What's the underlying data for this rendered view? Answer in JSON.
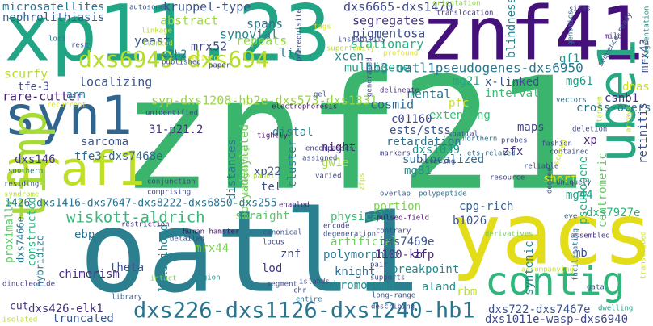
{
  "words": [
    {
      "text": "znf21",
      "color": "#3bb56e"
    },
    {
      "text": "oatl1",
      "color": "#2b7f8e"
    },
    {
      "text": "xp11.23",
      "color": "#21a585"
    },
    {
      "text": "znf41",
      "color": "#44117a"
    },
    {
      "text": "yacs",
      "color": "#e3dd19"
    },
    {
      "text": "contig",
      "color": "#2fb67b"
    },
    {
      "text": "syn1",
      "color": "#31658e"
    },
    {
      "text": "araf1",
      "color": "#bddf26"
    },
    {
      "text": "timp",
      "color": "#a6db35"
    },
    {
      "text": "ube1",
      "color": "#27a882"
    },
    {
      "text": "dxs226-dxs1126-dxs1240-hb1",
      "color": "#2b748e"
    },
    {
      "text": "dxs6949-dxs694",
      "color": "#b5de2b"
    },
    {
      "text": "hb3-oatl1pseudogenes-dxs6950",
      "color": "#2a768e"
    },
    {
      "text": "dxs6665-dxs1470",
      "color": "#3e4989"
    },
    {
      "text": "syp-dxs1208-hb2e-dxs573-dxs1331",
      "color": "#97d83f"
    },
    {
      "text": "1426-dxs1416-dxs7647-dxs8222-dxs6850-dxs255",
      "color": "#2c738e"
    },
    {
      "text": "wiskott-aldrich",
      "color": "#37b878"
    },
    {
      "text": "kruppel-type",
      "color": "#3b528b"
    },
    {
      "text": "microsatellites",
      "color": "#2c738e"
    },
    {
      "text": "nephrolithiasis",
      "color": "#35608d"
    },
    {
      "text": "abstract",
      "color": "#9fda3a"
    },
    {
      "text": "segregates",
      "color": "#46337e"
    },
    {
      "text": "pigmentosa",
      "color": "#3d4d8a"
    },
    {
      "text": "blindness",
      "color": "#26828e"
    },
    {
      "text": "stationary",
      "color": "#2ab07f"
    },
    {
      "text": "multigene",
      "color": "#20a386"
    },
    {
      "text": "xcen",
      "color": "#23888e"
    },
    {
      "text": "synovial",
      "color": "#25858e"
    },
    {
      "text": "spans",
      "color": "#2b758e"
    },
    {
      "text": "mrx52",
      "color": "#3f4889"
    },
    {
      "text": "repeats",
      "color": "#8ed645"
    },
    {
      "text": "lie",
      "color": "#287d8e"
    },
    {
      "text": "yeast",
      "color": "#39568c"
    },
    {
      "text": "localizing",
      "color": "#3a548c"
    },
    {
      "text": "c2h2",
      "color": "#2c718e"
    },
    {
      "text": "refined",
      "color": "#d8e219"
    },
    {
      "text": "scurfy",
      "color": "#b5de2b"
    },
    {
      "text": "tfe-3",
      "color": "#3f4788"
    },
    {
      "text": "rare-cutter",
      "color": "#482374"
    },
    {
      "text": "arm",
      "color": "#2c738e"
    },
    {
      "text": "mg21",
      "color": "#22a785"
    },
    {
      "text": "gf1",
      "color": "#21918c"
    },
    {
      "text": "mrx43",
      "color": "#3e4a89"
    },
    {
      "text": "x-linked",
      "color": "#3b518b"
    },
    {
      "text": "mg61",
      "color": "#1f9e89"
    },
    {
      "text": "dnas",
      "color": "#d0e11c"
    },
    {
      "text": "csnb1",
      "color": "#472d7b"
    },
    {
      "text": "interval",
      "color": "#3bbb75"
    },
    {
      "text": "cross-overs",
      "color": "#2c728e"
    },
    {
      "text": "cosmid",
      "color": "#31678e"
    },
    {
      "text": "mental",
      "color": "#2a778e"
    },
    {
      "text": "pfc",
      "color": "#d0e11c"
    },
    {
      "text": "extending",
      "color": "#3aba76"
    },
    {
      "text": "c01160",
      "color": "#3e4989"
    },
    {
      "text": "ests/stss",
      "color": "#3b528b"
    },
    {
      "text": "retardation",
      "color": "#2d708e"
    },
    {
      "text": "sublocalized",
      "color": "#31688e"
    },
    {
      "text": "dxs1039",
      "color": "#20928c"
    },
    {
      "text": "zfx",
      "color": "#46327e"
    },
    {
      "text": "retinitis",
      "color": "#3c4f8a"
    },
    {
      "text": "centromeric",
      "color": "#60ca60"
    },
    {
      "text": "pseudogene",
      "color": "#27ad81"
    },
    {
      "text": "maps",
      "color": "#414487"
    },
    {
      "text": "xp",
      "color": "#481f70"
    },
    {
      "text": "31-p21.2",
      "color": "#46307e"
    },
    {
      "text": "sarcoma",
      "color": "#3a548c"
    },
    {
      "text": "dxs146",
      "color": "#443983"
    },
    {
      "text": "tfe3-dxs7468e",
      "color": "#31688e"
    },
    {
      "text": "distal",
      "color": "#287c8e"
    },
    {
      "text": "cluster",
      "color": "#26828e"
    },
    {
      "text": "distances",
      "color": "#2a788e"
    },
    {
      "text": "polyadenylated",
      "color": "#6ccd5a"
    },
    {
      "text": "night",
      "color": "#481b6d"
    },
    {
      "text": "gw1e",
      "color": "#a0da39"
    },
    {
      "text": "xp22",
      "color": "#3a538b"
    },
    {
      "text": "tel",
      "color": "#3b528b"
    },
    {
      "text": "mg81",
      "color": "#24878e"
    },
    {
      "text": "dxs7927e",
      "color": "#2db27d"
    },
    {
      "text": "short",
      "color": "#d5e21a"
    },
    {
      "text": "mg44",
      "color": "#1fa088"
    },
    {
      "text": "cpg-rich",
      "color": "#34618d"
    },
    {
      "text": "b1026",
      "color": "#3a548c"
    },
    {
      "text": "portion",
      "color": "#7ad151"
    },
    {
      "text": "physical",
      "color": "#3bbb75"
    },
    {
      "text": "straight",
      "color": "#56c667"
    },
    {
      "text": "proximally",
      "color": "#5cc863"
    },
    {
      "text": "dxs7466e",
      "color": "#2c738e"
    },
    {
      "text": "constructed",
      "color": "#2ab07f"
    },
    {
      "text": "ebp",
      "color": "#2d708e"
    },
    {
      "text": "hybridize",
      "color": "#287d8e"
    },
    {
      "text": "chimerism",
      "color": "#472e7c"
    },
    {
      "text": "theta",
      "color": "#3b528b"
    },
    {
      "text": "mrx44",
      "color": "#7ad151"
    },
    {
      "text": "likelihood",
      "color": "#24878e"
    },
    {
      "text": "artificial",
      "color": "#6ece58"
    },
    {
      "text": "polymorphic",
      "color": "#2a788e"
    },
    {
      "text": "knight",
      "color": "#31678e"
    },
    {
      "text": "chromosome",
      "color": "#21908d"
    },
    {
      "text": "lod",
      "color": "#46337e"
    },
    {
      "text": "znf",
      "color": "#3e4989"
    },
    {
      "text": "dxs7469e",
      "color": "#3b528b"
    },
    {
      "text": "zfp",
      "color": "#482878"
    },
    {
      "text": "1100-kb",
      "color": "#472f7d"
    },
    {
      "text": "breakpoint",
      "color": "#23898e"
    },
    {
      "text": "aland",
      "color": "#21918c"
    },
    {
      "text": "rbm",
      "color": "#b8de29"
    },
    {
      "text": "syntenic",
      "color": "#25838e"
    },
    {
      "text": "mb",
      "color": "#3d4e8a"
    },
    {
      "text": "dxs722-dxs7467e",
      "color": "#3a538b"
    },
    {
      "text": "dxs1011e-wasp-dxs6940",
      "color": "#3e4989"
    },
    {
      "text": "dxs426-elk1",
      "color": "#46327e"
    },
    {
      "text": "truncated",
      "color": "#38588c"
    },
    {
      "text": "cut",
      "color": "#45337d"
    },
    {
      "text": "dinucleotide",
      "color": "#433e85"
    },
    {
      "text": "isolated",
      "color": "#bade28"
    },
    {
      "text": "enabled",
      "color": "#482677"
    },
    {
      "text": "human-hamster",
      "color": "#471365"
    },
    {
      "text": "locus",
      "color": "#3d4d8a"
    },
    {
      "text": "islands",
      "color": "#3f4788"
    },
    {
      "text": "pulsed-field",
      "color": "#481467"
    },
    {
      "text": "derivatives",
      "color": "#6ece58"
    },
    {
      "text": "assembled",
      "color": "#46337e"
    },
    {
      "text": "facilitating",
      "color": "#2c718e"
    },
    {
      "text": "transcribed",
      "color": "#d2e21b"
    },
    {
      "text": "accompanying",
      "color": "#c8e020"
    },
    {
      "text": "gata",
      "color": "#35608d"
    },
    {
      "text": "dwelling",
      "color": "#1fa188"
    },
    {
      "text": "recurrent",
      "color": "#dde318"
    },
    {
      "text": "unidentified",
      "color": "#3e4989"
    },
    {
      "text": "residing",
      "color": "#3b528b"
    },
    {
      "text": "syndrome",
      "color": "#b0dd2f"
    },
    {
      "text": "southern",
      "color": "#2d718e"
    },
    {
      "text": "conjunction",
      "color": "#424086"
    },
    {
      "text": "comprising",
      "color": "#3e4a89"
    },
    {
      "text": "intact",
      "color": "#7fd34e"
    },
    {
      "text": "library",
      "color": "#38598c"
    },
    {
      "text": "region",
      "color": "#20928c"
    },
    {
      "text": "segment",
      "color": "#3e4989"
    },
    {
      "text": "chr",
      "color": "#3f4889"
    },
    {
      "text": "entire",
      "color": "#2c718e"
    },
    {
      "text": "supports",
      "color": "#3b528b"
    },
    {
      "text": "long-range",
      "color": "#3a548c"
    },
    {
      "text": "autosomes",
      "color": "#3a548c"
    },
    {
      "text": "linkage",
      "color": "#bade28"
    },
    {
      "text": "flanked",
      "color": "#b2dd2d"
    },
    {
      "text": "loci",
      "color": "#2e6f8e"
    },
    {
      "text": "rest",
      "color": "#3c4f8a"
    },
    {
      "text": "published",
      "color": "#3e4a89"
    },
    {
      "text": "paper",
      "color": "#3f4889"
    },
    {
      "text": "prerequisite",
      "color": "#3e4a89"
    },
    {
      "text": "tags",
      "color": "#d8e219"
    },
    {
      "text": "orientation",
      "color": "#90d743"
    },
    {
      "text": "translocation",
      "color": "#46337e"
    },
    {
      "text": "sites",
      "color": "#3e4a89"
    },
    {
      "text": "sequence-ready",
      "color": "#3b528b"
    },
    {
      "text": "mild",
      "color": "#482576"
    },
    {
      "text": "fragmentation",
      "color": "#21918c"
    },
    {
      "text": "genomics",
      "color": "#2c728e"
    },
    {
      "text": "profound",
      "color": "#dde318"
    },
    {
      "text": "superfamily",
      "color": "#bddf26"
    },
    {
      "text": "instability",
      "color": "#3e4989"
    },
    {
      "text": "gel",
      "color": "#3a548c"
    },
    {
      "text": "electrophoresis",
      "color": "#481467"
    },
    {
      "text": "generated",
      "color": "#3f4889"
    },
    {
      "text": "delineate",
      "color": "#472f7d"
    },
    {
      "text": "vectors",
      "color": "#2d718e"
    },
    {
      "text": "deletion",
      "color": "#3e4a89"
    },
    {
      "text": "northern",
      "color": "#2d718e"
    },
    {
      "text": "probes",
      "color": "#3e4a89"
    },
    {
      "text": "fashion",
      "color": "#3e4989"
    },
    {
      "text": "contained",
      "color": "#3e4a89"
    },
    {
      "text": "arrays",
      "color": "#bade28"
    },
    {
      "text": "tandem",
      "color": "#b8de29"
    },
    {
      "text": "scored",
      "color": "#d2e21b"
    },
    {
      "text": "markers",
      "color": "#414487"
    },
    {
      "text": "covering",
      "color": "#3e4989"
    },
    {
      "text": "spatial",
      "color": "#3a548c"
    },
    {
      "text": "ets-related",
      "color": "#2c728e"
    },
    {
      "text": "reliable",
      "color": "#3e4a89"
    },
    {
      "text": "resource",
      "color": "#414487"
    },
    {
      "text": "degree",
      "color": "#3e4989"
    },
    {
      "text": "uniquely",
      "color": "#433e85"
    },
    {
      "text": "eye",
      "color": "#3b528b"
    },
    {
      "text": "tightly",
      "color": "#481467"
    },
    {
      "text": "encompasses",
      "color": "#424086"
    },
    {
      "text": "assigned",
      "color": "#3e4989"
    },
    {
      "text": "integrating",
      "color": "#7ad151"
    },
    {
      "text": "panel",
      "color": "#b2dd2d"
    },
    {
      "text": "varied",
      "color": "#3e4a89"
    },
    {
      "text": "zfps",
      "color": "#c2df23"
    },
    {
      "text": "overlap",
      "color": "#38598c"
    },
    {
      "text": "polypeptide",
      "color": "#2c728e"
    },
    {
      "text": "restriction",
      "color": "#46337e"
    },
    {
      "text": "detailed",
      "color": "#3e4989"
    },
    {
      "text": "canonical",
      "color": "#3a548c"
    },
    {
      "text": "encode",
      "color": "#3e4989"
    },
    {
      "text": "degeneration",
      "color": "#3b528b"
    },
    {
      "text": "contrary",
      "color": "#3e4a89"
    },
    {
      "text": "pair",
      "color": "#3e4a89"
    },
    {
      "text": "describing",
      "color": "#3e4989"
    }
  ]
}
